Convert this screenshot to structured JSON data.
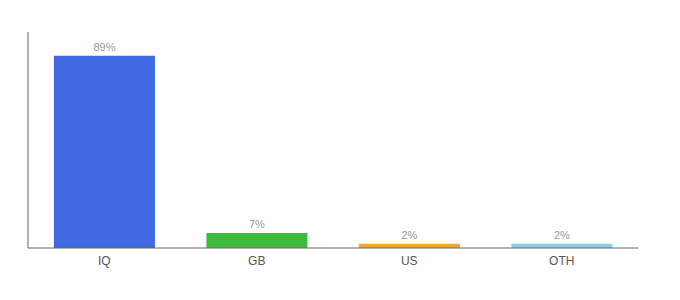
{
  "chart_data": {
    "type": "bar",
    "categories": [
      "IQ",
      "GB",
      "US",
      "OTH"
    ],
    "values": [
      89,
      7,
      2,
      2
    ],
    "value_labels": [
      "89%",
      "7%",
      "2%",
      "2%"
    ],
    "colors": [
      "#4169e1",
      "#3dbb3d",
      "#f5a623",
      "#87ceeb"
    ],
    "ylim": [
      0,
      100
    ],
    "data_labels": true,
    "tick_labels": "x",
    "grid": false
  }
}
